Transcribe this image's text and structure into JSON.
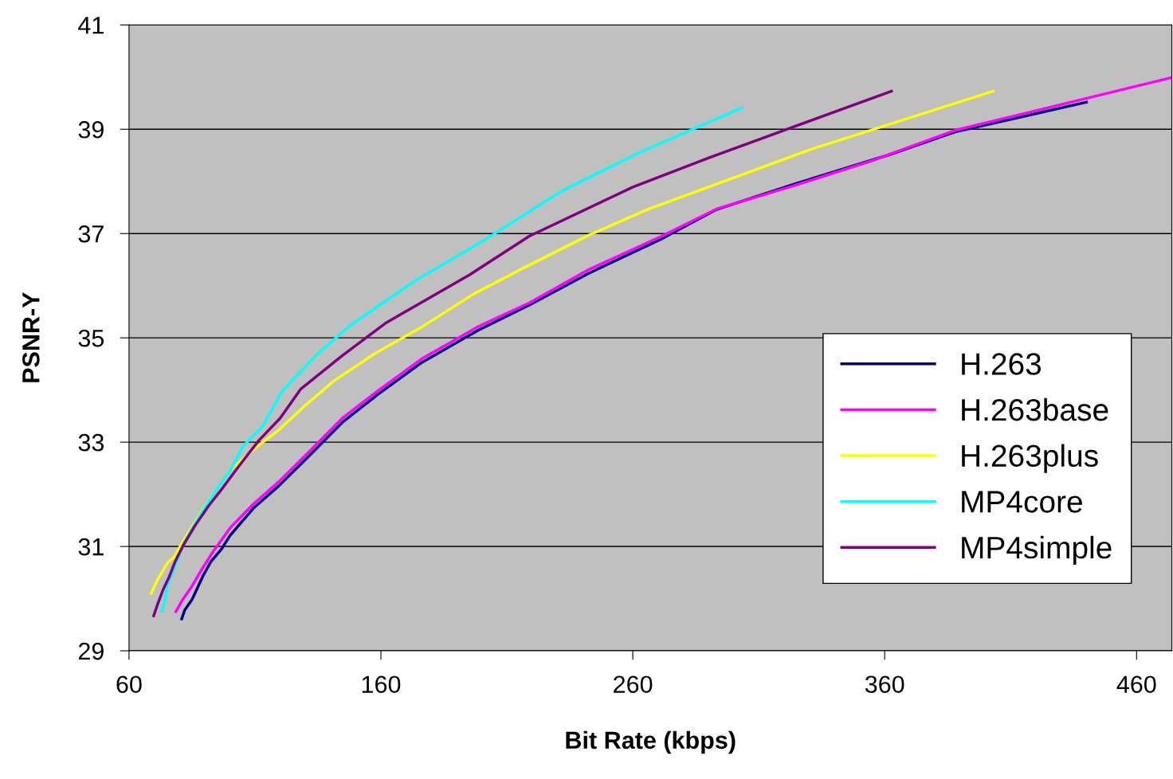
{
  "chart_data": {
    "type": "line",
    "xlabel": "Bit Rate (kbps)",
    "ylabel": "PSNR-Y",
    "xlim": [
      60,
      474
    ],
    "xticks": [
      60,
      160,
      260,
      360,
      460
    ],
    "ylim": [
      29,
      41
    ],
    "yticks": [
      29,
      31,
      33,
      35,
      37,
      39,
      41
    ],
    "grid": "y",
    "legend": "right",
    "marker": "none",
    "line_style": "solid",
    "series": [
      {
        "name": "H.263",
        "color": "#000080",
        "x": [
          80.9,
          82.1,
          85.0,
          89.4,
          92.5,
          96.7,
          100.1,
          109.3,
          119.4,
          130.5,
          144.7,
          158.9,
          176.3,
          198.4,
          218.9,
          242.6,
          271.1,
          293.2,
          324.8,
          361.1,
          388.0,
          440.1
        ],
        "values": [
          29.61,
          29.78,
          29.98,
          30.44,
          30.71,
          30.95,
          31.21,
          31.73,
          32.16,
          32.69,
          33.38,
          33.92,
          34.53,
          35.14,
          35.63,
          36.24,
          36.89,
          37.46,
          37.96,
          38.5,
          38.95,
          39.52
        ]
      },
      {
        "name": "H.263base",
        "color": "#ff00ff",
        "x": [
          78.6,
          80.9,
          84.6,
          89.4,
          93.5,
          100.4,
          109.3,
          119.4,
          130.5,
          144.7,
          158.9,
          176.3,
          198.4,
          218.9,
          242.6,
          271.1,
          293.2,
          324.8,
          356.4,
          388.0,
          473.9
        ],
        "values": [
          29.75,
          29.95,
          30.21,
          30.6,
          30.91,
          31.37,
          31.81,
          32.24,
          32.77,
          33.46,
          33.99,
          34.6,
          35.21,
          35.67,
          36.31,
          36.94,
          37.47,
          37.93,
          38.42,
          38.98,
          39.99
        ]
      },
      {
        "name": "H.263plus",
        "color": "#ffff00",
        "x": [
          68.8,
          71.4,
          75.2,
          77.7,
          82.1,
          87.2,
          93.5,
          100.4,
          109.9,
          119.4,
          128.9,
          141.5,
          157.3,
          176.3,
          196.8,
          214.2,
          242.6,
          266.3,
          331.1,
          403.1
        ],
        "values": [
          30.1,
          30.37,
          30.68,
          30.79,
          31.15,
          31.55,
          32.01,
          32.47,
          32.88,
          33.23,
          33.66,
          34.18,
          34.69,
          35.21,
          35.84,
          36.28,
          36.97,
          37.47,
          38.62,
          39.73
        ]
      },
      {
        "name": "MP4core",
        "color": "#00ffff",
        "x": [
          73.0,
          74.2,
          75.2,
          82.1,
          86.2,
          90.3,
          95.7,
          100.4,
          105.2,
          113.1,
          121.0,
          134.6,
          147.8,
          174.7,
          201.6,
          231.6,
          261.6,
          303.3
        ],
        "values": [
          29.76,
          29.95,
          30.25,
          31.09,
          31.44,
          31.76,
          32.16,
          32.47,
          32.92,
          33.31,
          33.99,
          34.68,
          35.24,
          36.13,
          36.89,
          37.81,
          38.53,
          39.41
        ]
      },
      {
        "name": "MP4simple",
        "color": "#800080",
        "x": [
          69.8,
          71.4,
          73.6,
          75.8,
          78.3,
          81.5,
          86.2,
          91.6,
          97.3,
          103.6,
          111.5,
          120.0,
          128.2,
          144.7,
          162.1,
          195.2,
          218.9,
          260.0,
          290.0,
          362.7
        ],
        "values": [
          29.67,
          29.9,
          30.18,
          30.4,
          30.71,
          31.02,
          31.4,
          31.78,
          32.13,
          32.54,
          33.03,
          33.46,
          34.02,
          34.66,
          35.29,
          36.21,
          36.95,
          37.89,
          38.45,
          39.73
        ]
      }
    ]
  }
}
